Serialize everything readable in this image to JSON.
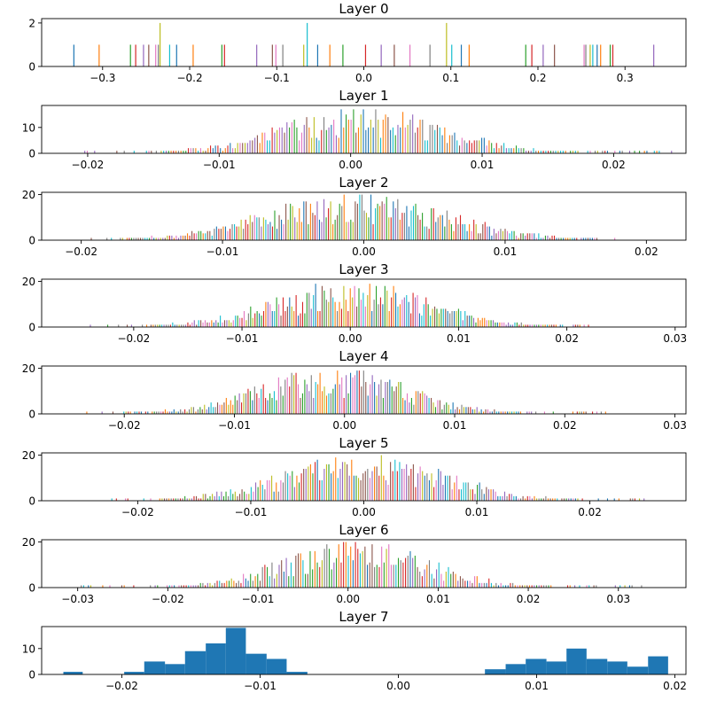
{
  "palette": [
    "#1f77b4",
    "#ff7f0e",
    "#2ca02c",
    "#d62728",
    "#9467bd",
    "#8c564b",
    "#e377c2",
    "#7f7f7f",
    "#bcbd22",
    "#17becf"
  ],
  "chart_data": [
    {
      "type": "bar",
      "title": "Layer 0",
      "xlim": [
        -0.37,
        0.37
      ],
      "ylim": [
        0,
        2.2
      ],
      "xticks": [
        -0.3,
        -0.2,
        -0.1,
        0.0,
        0.1,
        0.2,
        0.3
      ],
      "xticklabels": [
        "−0.3",
        "−0.2",
        "−0.1",
        "0.0",
        "0.1",
        "0.2",
        "0.3"
      ],
      "yticks": [
        0,
        2
      ],
      "yticklabels": [
        "0",
        "2"
      ],
      "bins": [
        [
          -0.333,
          1
        ],
        [
          -0.304,
          1
        ],
        [
          -0.268,
          1
        ],
        [
          -0.262,
          1
        ],
        [
          -0.253,
          1
        ],
        [
          -0.247,
          1
        ],
        [
          -0.239,
          1
        ],
        [
          -0.236,
          1
        ],
        [
          -0.234,
          2
        ],
        [
          -0.223,
          1
        ],
        [
          -0.215,
          1
        ],
        [
          -0.196,
          1
        ],
        [
          -0.163,
          1
        ],
        [
          -0.16,
          1
        ],
        [
          -0.123,
          1
        ],
        [
          -0.105,
          1
        ],
        [
          -0.101,
          1
        ],
        [
          -0.093,
          1
        ],
        [
          -0.069,
          1
        ],
        [
          -0.065,
          2
        ],
        [
          -0.053,
          1
        ],
        [
          -0.039,
          1
        ],
        [
          -0.024,
          1
        ],
        [
          0.002,
          1
        ],
        [
          0.02,
          1
        ],
        [
          0.035,
          1
        ],
        [
          0.053,
          1
        ],
        [
          0.076,
          1
        ],
        [
          0.095,
          2
        ],
        [
          0.101,
          1
        ],
        [
          0.112,
          1
        ],
        [
          0.121,
          1
        ],
        [
          0.186,
          1
        ],
        [
          0.193,
          1
        ],
        [
          0.206,
          1
        ],
        [
          0.219,
          1
        ],
        [
          0.253,
          1
        ],
        [
          0.255,
          1
        ],
        [
          0.26,
          1
        ],
        [
          0.263,
          1
        ],
        [
          0.268,
          1
        ],
        [
          0.272,
          1
        ],
        [
          0.283,
          1
        ],
        [
          0.286,
          1
        ],
        [
          0.333,
          1
        ]
      ]
    },
    {
      "type": "bar",
      "title": "Layer 1",
      "xlim": [
        -0.0235,
        0.0255
      ],
      "ylim": [
        0,
        18.5
      ],
      "xticks": [
        -0.02,
        -0.01,
        0.0,
        0.01,
        0.02
      ],
      "xticklabels": [
        "−0.02",
        "−0.01",
        "0.00",
        "0.01",
        "0.02"
      ],
      "yticks": [
        0,
        10
      ],
      "yticklabels": [
        "0",
        "10"
      ],
      "range": [
        -0.0205,
        0.0245
      ],
      "mean": 0.001,
      "sd": 0.0062,
      "peak": 17
    },
    {
      "type": "bar",
      "title": "Layer 2",
      "xlim": [
        -0.0228,
        0.0228
      ],
      "ylim": [
        0,
        21
      ],
      "xticks": [
        -0.02,
        -0.01,
        0.0,
        0.01,
        0.02
      ],
      "xticklabels": [
        "−0.02",
        "−0.01",
        "0.00",
        "0.01",
        "0.02"
      ],
      "yticks": [
        0,
        20
      ],
      "yticklabels": [
        "0",
        "20"
      ],
      "range": [
        -0.02,
        0.018
      ],
      "mean": -0.0005,
      "sd": 0.0063,
      "peak": 20
    },
    {
      "type": "bar",
      "title": "Layer 3",
      "xlim": [
        -0.0285,
        0.031
      ],
      "ylim": [
        0,
        21
      ],
      "xticks": [
        -0.02,
        -0.01,
        0.0,
        0.01,
        0.02,
        0.03
      ],
      "xticklabels": [
        "−0.02",
        "−0.01",
        "0.00",
        "0.01",
        "0.02",
        "0.03"
      ],
      "yticks": [
        0,
        20
      ],
      "yticklabels": [
        "0",
        "20"
      ],
      "range": [
        -0.0255,
        0.0225
      ],
      "mean": 0.0,
      "sd": 0.0072,
      "peak": 19
    },
    {
      "type": "bar",
      "title": "Layer 4",
      "xlim": [
        -0.0275,
        0.031
      ],
      "ylim": [
        0,
        21
      ],
      "xticks": [
        -0.02,
        -0.01,
        0.0,
        0.01,
        0.02,
        0.03
      ],
      "xticklabels": [
        "−0.02",
        "−0.01",
        "0.00",
        "0.01",
        "0.02",
        "0.03"
      ],
      "yticks": [
        0,
        20
      ],
      "yticklabels": [
        "0",
        "20"
      ],
      "range": [
        -0.0235,
        0.024
      ],
      "mean": -0.001,
      "sd": 0.0068,
      "peak": 19
    },
    {
      "type": "bar",
      "title": "Layer 5",
      "xlim": [
        -0.0285,
        0.0285
      ],
      "ylim": [
        0,
        21
      ],
      "xticks": [
        -0.02,
        -0.01,
        0.0,
        0.01,
        0.02
      ],
      "xticklabels": [
        "−0.02",
        "−0.01",
        "0.00",
        "0.01",
        "0.02"
      ],
      "yticks": [
        0,
        20
      ],
      "yticklabels": [
        "0",
        "20"
      ],
      "range": [
        -0.023,
        0.0255
      ],
      "mean": 0.0,
      "sd": 0.007,
      "peak": 20
    },
    {
      "type": "bar",
      "title": "Layer 6",
      "xlim": [
        -0.034,
        0.0375
      ],
      "ylim": [
        0,
        21
      ],
      "xticks": [
        -0.03,
        -0.02,
        -0.01,
        0.0,
        0.01,
        0.02,
        0.03
      ],
      "xticklabels": [
        "−0.03",
        "−0.02",
        "−0.01",
        "0.00",
        "0.01",
        "0.02",
        "0.03"
      ],
      "yticks": [
        0,
        20
      ],
      "yticklabels": [
        "0",
        "20"
      ],
      "range": [
        -0.03,
        0.0335
      ],
      "mean": 0.001,
      "sd": 0.008,
      "peak": 20
    },
    {
      "type": "bar",
      "title": "Layer 7",
      "xlim": [
        -0.0258,
        0.0208
      ],
      "ylim": [
        0,
        18.5
      ],
      "xticks": [
        -0.02,
        -0.01,
        0.0,
        0.01,
        0.02
      ],
      "xticklabels": [
        "−0.02",
        "−0.01",
        "0.00",
        "0.01",
        "0.02"
      ],
      "yticks": [
        0,
        10
      ],
      "yticklabels": [
        "0",
        "10"
      ],
      "bins": [
        [
          -0.02423,
          -0.02283,
          1
        ],
        [
          -0.01983,
          -0.01838,
          1
        ],
        [
          -0.01838,
          -0.01688,
          5
        ],
        [
          -0.01688,
          -0.01543,
          4
        ],
        [
          -0.01543,
          -0.01393,
          9
        ],
        [
          -0.01393,
          -0.01248,
          12
        ],
        [
          -0.01248,
          -0.01103,
          18
        ],
        [
          -0.01103,
          -0.00953,
          8
        ],
        [
          -0.00953,
          -0.00808,
          6
        ],
        [
          -0.00808,
          -0.00658,
          1
        ],
        [
          0.00626,
          0.00776,
          2
        ],
        [
          0.00776,
          0.00921,
          4
        ],
        [
          0.00921,
          0.01071,
          6
        ],
        [
          0.01071,
          0.01216,
          5
        ],
        [
          0.01216,
          0.01361,
          10
        ],
        [
          0.01361,
          0.01511,
          6
        ],
        [
          0.01511,
          0.01656,
          5
        ],
        [
          0.01656,
          0.01806,
          3
        ],
        [
          0.01806,
          0.01951,
          7
        ]
      ]
    }
  ]
}
